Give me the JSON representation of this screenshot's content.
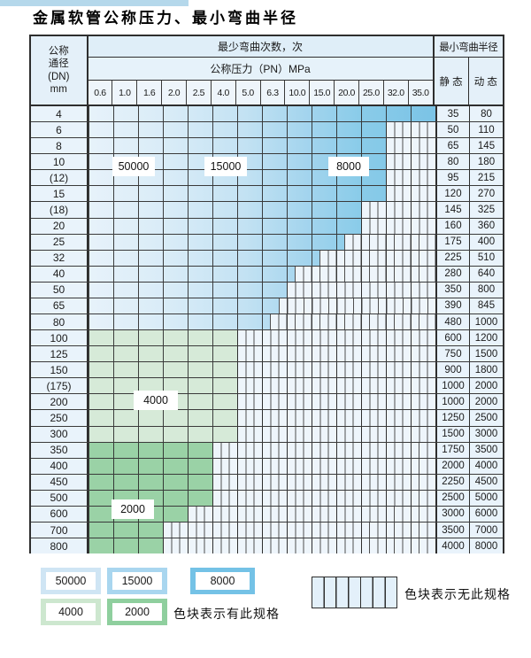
{
  "page": {
    "title": "金属软管公称压力、最小弯曲半径"
  },
  "table": {
    "header": {
      "dn_lines": [
        "公称",
        "通径",
        "(DN)",
        "mm"
      ],
      "bend_cycles_label": "最少弯曲次数，次",
      "pressure_label": "公称压力（PN）MPa",
      "radius_label": "最小弯曲半径",
      "static_label": "静 态",
      "dynamic_label": "动 态",
      "pressure_columns": [
        "0.6",
        "1.0",
        "1.6",
        "2.0",
        "2.5",
        "4.0",
        "5.0",
        "6.3",
        "10.0",
        "15.0",
        "20.0",
        "25.0",
        "32.0",
        "35.0"
      ]
    },
    "rows": [
      {
        "dn": "4",
        "static": "35",
        "dynamic": "80",
        "colored_cols": 14,
        "fill": "blue"
      },
      {
        "dn": "6",
        "static": "50",
        "dynamic": "110",
        "colored_cols": 12,
        "fill": "blue"
      },
      {
        "dn": "8",
        "static": "65",
        "dynamic": "145",
        "colored_cols": 12,
        "fill": "blue"
      },
      {
        "dn": "10",
        "static": "80",
        "dynamic": "180",
        "colored_cols": 12,
        "fill": "blue"
      },
      {
        "dn": "(12)",
        "static": "95",
        "dynamic": "215",
        "colored_cols": 12,
        "fill": "blue"
      },
      {
        "dn": "15",
        "static": "120",
        "dynamic": "270",
        "colored_cols": 12,
        "fill": "blue"
      },
      {
        "dn": "(18)",
        "static": "145",
        "dynamic": "325",
        "colored_cols": 11,
        "fill": "blue"
      },
      {
        "dn": "20",
        "static": "160",
        "dynamic": "360",
        "colored_cols": 11,
        "fill": "blue"
      },
      {
        "dn": "25",
        "static": "175",
        "dynamic": "400",
        "colored_cols": 10.33,
        "fill": "blue"
      },
      {
        "dn": "32",
        "static": "225",
        "dynamic": "510",
        "colored_cols": 9.33,
        "fill": "blue"
      },
      {
        "dn": "40",
        "static": "280",
        "dynamic": "640",
        "colored_cols": 8.33,
        "fill": "blue"
      },
      {
        "dn": "50",
        "static": "350",
        "dynamic": "800",
        "colored_cols": 8,
        "fill": "blue"
      },
      {
        "dn": "65",
        "static": "390",
        "dynamic": "845",
        "colored_cols": 7.67,
        "fill": "blue"
      },
      {
        "dn": "80",
        "static": "480",
        "dynamic": "1000",
        "colored_cols": 7.33,
        "fill": "blue"
      },
      {
        "dn": "100",
        "static": "600",
        "dynamic": "1200",
        "colored_cols": 6,
        "fill": "g4"
      },
      {
        "dn": "125",
        "static": "750",
        "dynamic": "1500",
        "colored_cols": 6,
        "fill": "g4"
      },
      {
        "dn": "150",
        "static": "900",
        "dynamic": "1800",
        "colored_cols": 6,
        "fill": "g4"
      },
      {
        "dn": "(175)",
        "static": "1000",
        "dynamic": "2000",
        "colored_cols": 6,
        "fill": "g4"
      },
      {
        "dn": "200",
        "static": "1000",
        "dynamic": "2000",
        "colored_cols": 6,
        "fill": "g4"
      },
      {
        "dn": "250",
        "static": "1250",
        "dynamic": "2500",
        "colored_cols": 6,
        "fill": "g4"
      },
      {
        "dn": "300",
        "static": "1500",
        "dynamic": "3000",
        "colored_cols": 6,
        "fill": "g4"
      },
      {
        "dn": "350",
        "static": "1750",
        "dynamic": "3500",
        "colored_cols": 5,
        "fill": "g2"
      },
      {
        "dn": "400",
        "static": "2000",
        "dynamic": "4000",
        "colored_cols": 5,
        "fill": "g2"
      },
      {
        "dn": "450",
        "static": "2250",
        "dynamic": "4500",
        "colored_cols": 5,
        "fill": "g2"
      },
      {
        "dn": "500",
        "static": "2500",
        "dynamic": "5000",
        "colored_cols": 5,
        "fill": "g2"
      },
      {
        "dn": "600",
        "static": "3000",
        "dynamic": "6000",
        "colored_cols": 4,
        "fill": "g2"
      },
      {
        "dn": "700",
        "static": "3500",
        "dynamic": "7000",
        "colored_cols": 3,
        "fill": "g2"
      },
      {
        "dn": "800",
        "static": "4000",
        "dynamic": "8000",
        "colored_cols": 3,
        "fill": "g2"
      }
    ]
  },
  "cycle_labels": {
    "c50000": "50000",
    "c15000": "15000",
    "c8000": "8000",
    "c4000": "4000",
    "c2000": "2000"
  },
  "legend": {
    "has_spec_swatches": [
      {
        "value": "50000",
        "color": "#cfe5f4"
      },
      {
        "value": "15000",
        "color": "#a9d6ef"
      },
      {
        "value": "8000",
        "color": "#74c2e6"
      },
      {
        "value": "4000",
        "color": "#cde7cf"
      },
      {
        "value": "2000",
        "color": "#8fcf9e"
      }
    ],
    "has_spec_note": "色块表示有此规格",
    "no_spec_note": "色块表示无此规格"
  },
  "colors": {
    "blue_dark": "#7bc3e6",
    "blue_light": "#e7f2fa",
    "green_4000": "#d6ead8",
    "green_2000": "#9ad2a6",
    "cell_bg": "#e9f3fb",
    "grid_line": "#3a3a3a"
  }
}
